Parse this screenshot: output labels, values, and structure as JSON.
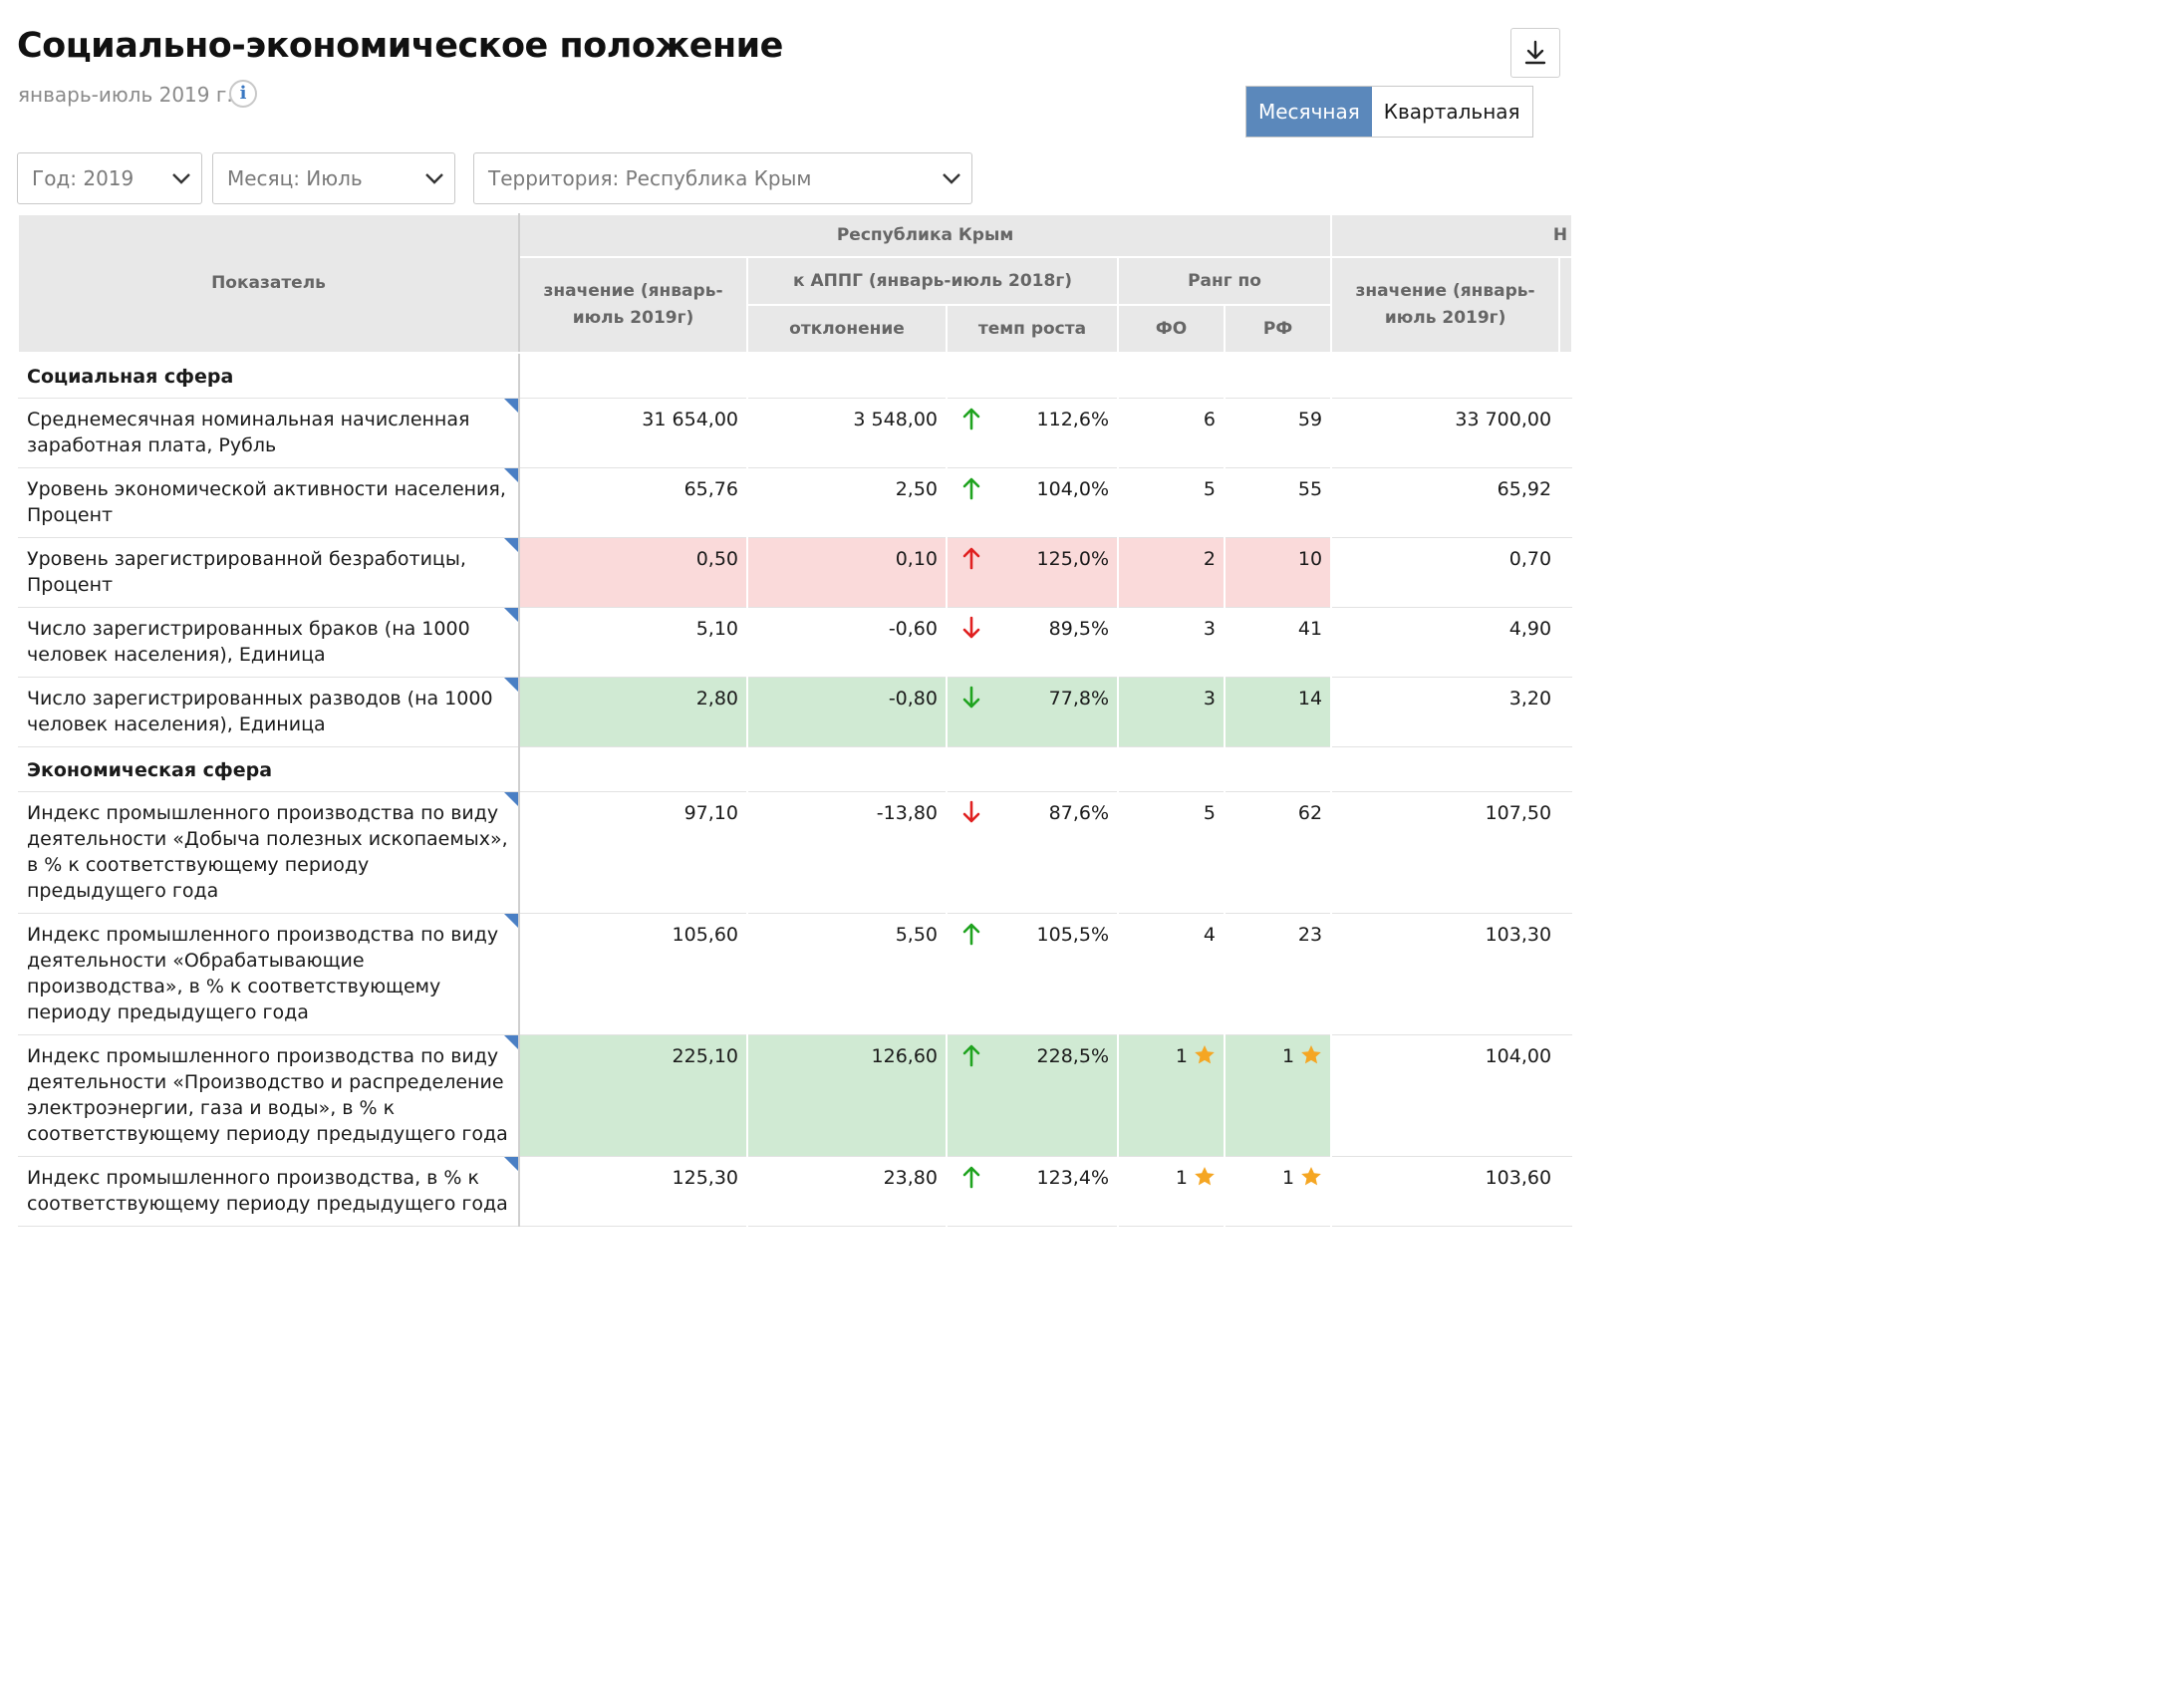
{
  "header": {
    "title": "Социально-экономическое положение",
    "subtitle": "январь-июль 2019 г.",
    "info_label": "i"
  },
  "toggle": {
    "monthly": "Месячная",
    "quarterly": "Квартальная",
    "active": "monthly"
  },
  "filters": {
    "year": "Год: 2019",
    "month": "Месяц: Июль",
    "territory": "Территория: Республика Крым"
  },
  "table": {
    "col_indicator": "Показатель",
    "group_region": "Республика Крым",
    "col_value": "значение (январь-июль 2019г)",
    "group_appg": "к АППГ (январь-июль 2018г)",
    "col_deviation": "отклонение",
    "col_growth": "темп роста",
    "group_rank": "Ранг по",
    "col_fo": "ФО",
    "col_rf": "РФ",
    "col_value2": "значение (январь-июль 2019г)",
    "group_region2_partial": "Н",
    "sections": [
      {
        "title": "Социальная сфера",
        "rows": [
          {
            "name": "Среднемесячная номинальная начисленная заработная плата, Рубль",
            "value": "31 654,00",
            "deviation": "3 548,00",
            "trend": "up",
            "arrow_color": "#1fa31f",
            "growth": "112,6%",
            "fo": "6",
            "rf": "59",
            "fo_star": false,
            "rf_star": false,
            "value2": "33 700,00",
            "highlight": "none"
          },
          {
            "name": "Уровень экономической активности населения, Процент",
            "value": "65,76",
            "deviation": "2,50",
            "trend": "up",
            "arrow_color": "#1fa31f",
            "growth": "104,0%",
            "fo": "5",
            "rf": "55",
            "fo_star": false,
            "rf_star": false,
            "value2": "65,92",
            "highlight": "none"
          },
          {
            "name": "Уровень зарегистрированной безработицы, Процент",
            "value": "0,50",
            "deviation": "0,10",
            "trend": "up",
            "arrow_color": "#e02020",
            "growth": "125,0%",
            "fo": "2",
            "rf": "10",
            "fo_star": false,
            "rf_star": false,
            "value2": "0,70",
            "highlight": "red"
          },
          {
            "name": "Число зарегистрированных браков (на 1000 человек населения), Единица",
            "value": "5,10",
            "deviation": "-0,60",
            "trend": "down",
            "arrow_color": "#e02020",
            "growth": "89,5%",
            "fo": "3",
            "rf": "41",
            "fo_star": false,
            "rf_star": false,
            "value2": "4,90",
            "highlight": "none"
          },
          {
            "name": "Число зарегистрированных разводов (на 1000 человек населения), Единица",
            "value": "2,80",
            "deviation": "-0,80",
            "trend": "down",
            "arrow_color": "#1fa31f",
            "growth": "77,8%",
            "fo": "3",
            "rf": "14",
            "fo_star": false,
            "rf_star": false,
            "value2": "3,20",
            "highlight": "green"
          }
        ]
      },
      {
        "title": "Экономическая сфера",
        "rows": [
          {
            "name": "Индекс промышленного производства по виду деятельности «Добыча полезных ископаемых», в % к соответствующему периоду предыдущего года",
            "value": "97,10",
            "deviation": "-13,80",
            "trend": "down",
            "arrow_color": "#e02020",
            "growth": "87,6%",
            "fo": "5",
            "rf": "62",
            "fo_star": false,
            "rf_star": false,
            "value2": "107,50",
            "highlight": "none"
          },
          {
            "name": "Индекс промышленного производства по виду деятельности «Обрабатывающие производства», в % к соответствующему периоду предыдущего года",
            "value": "105,60",
            "deviation": "5,50",
            "trend": "up",
            "arrow_color": "#1fa31f",
            "growth": "105,5%",
            "fo": "4",
            "rf": "23",
            "fo_star": false,
            "rf_star": false,
            "value2": "103,30",
            "highlight": "none"
          },
          {
            "name": "Индекс промышленного производства по виду деятельности «Производство и распределение электроэнергии, газа и воды», в % к соответствующему периоду предыдущего года",
            "value": "225,10",
            "deviation": "126,60",
            "trend": "up",
            "arrow_color": "#1fa31f",
            "growth": "228,5%",
            "fo": "1",
            "rf": "1",
            "fo_star": true,
            "rf_star": true,
            "value2": "104,00",
            "highlight": "green"
          },
          {
            "name": "Индекс промышленного производства, в % к соответствующему периоду предыдущего года",
            "value": "125,30",
            "deviation": "23,80",
            "trend": "up",
            "arrow_color": "#1fa31f",
            "growth": "123,4%",
            "fo": "1",
            "rf": "1",
            "fo_star": true,
            "rf_star": true,
            "value2": "103,60",
            "highlight": "none"
          }
        ]
      }
    ]
  },
  "colors": {
    "accent": "#5b88bb",
    "arrow_good": "#1fa31f",
    "arrow_bad": "#e02020",
    "highlight_red": "#fadada",
    "highlight_green": "#d0ead3",
    "star": "#f5a623",
    "corner_marker": "#4a7fc4"
  }
}
